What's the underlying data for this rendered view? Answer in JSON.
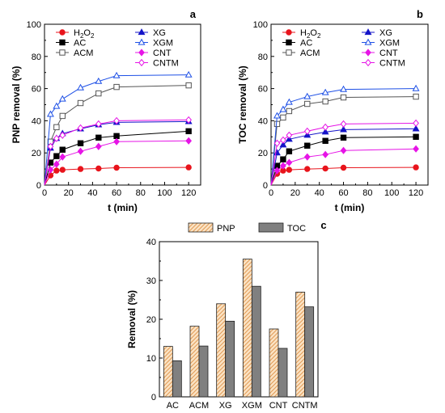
{
  "chart_data": [
    {
      "panel": "a",
      "type": "line",
      "xlabel": "t (min)",
      "ylabel": "PNP removal (%)",
      "xlim": [
        0,
        130
      ],
      "ylim": [
        0,
        100
      ],
      "xticks": [
        0,
        20,
        40,
        60,
        80,
        100,
        120
      ],
      "yticks": [
        0,
        20,
        40,
        60,
        80,
        100
      ],
      "legend_position": "top",
      "series": [
        {
          "name": "H2O2",
          "label_main": "H",
          "label_sub1": "2",
          "label_mid": "O",
          "label_sub2": "2",
          "color": "#e8141c",
          "marker": "circle-filled",
          "x": [
            0,
            5,
            10,
            15,
            30,
            45,
            60,
            120
          ],
          "y": [
            0,
            6,
            9,
            9.5,
            10,
            10.3,
            10.8,
            11
          ]
        },
        {
          "name": "AC",
          "color": "#000000",
          "marker": "square-filled",
          "x": [
            0,
            5,
            10,
            15,
            30,
            45,
            60,
            120
          ],
          "y": [
            0,
            14,
            18,
            22,
            26,
            29.5,
            30.5,
            33.5
          ]
        },
        {
          "name": "ACM",
          "color": "#555555",
          "marker": "square-open",
          "x": [
            0,
            5,
            10,
            15,
            30,
            45,
            60,
            120
          ],
          "y": [
            0,
            27,
            36,
            43,
            51,
            57,
            61,
            62
          ]
        },
        {
          "name": "XG",
          "color": "#1414c8",
          "marker": "triangle-filled",
          "x": [
            0,
            5,
            10,
            15,
            30,
            45,
            60,
            120
          ],
          "y": [
            0,
            23,
            29,
            32,
            35,
            37.5,
            39,
            39.5
          ]
        },
        {
          "name": "XGM",
          "color": "#1e50e6",
          "marker": "triangle-open",
          "x": [
            0,
            5,
            10,
            15,
            30,
            45,
            60,
            120
          ],
          "y": [
            0,
            44,
            49,
            53.5,
            60.5,
            64.5,
            68,
            68.5
          ]
        },
        {
          "name": "CNT",
          "color": "#e614e6",
          "marker": "diamond-filled",
          "x": [
            0,
            5,
            10,
            15,
            30,
            45,
            60,
            120
          ],
          "y": [
            0,
            9.5,
            13,
            17.5,
            21,
            24,
            27,
            27.5
          ]
        },
        {
          "name": "CNTM",
          "color": "#e614e6",
          "marker": "diamond-open",
          "x": [
            0,
            5,
            10,
            15,
            30,
            45,
            60,
            120
          ],
          "y": [
            0,
            24,
            29,
            31,
            35.5,
            38,
            40,
            40.5
          ]
        }
      ]
    },
    {
      "panel": "b",
      "type": "line",
      "xlabel": "t (min)",
      "ylabel": "TOC removal (%)",
      "xlim": [
        0,
        130
      ],
      "ylim": [
        0,
        100
      ],
      "xticks": [
        0,
        20,
        40,
        60,
        80,
        100,
        120
      ],
      "yticks": [
        0,
        20,
        40,
        60,
        80,
        100
      ],
      "legend_position": "top",
      "series": [
        {
          "name": "H2O2",
          "label_main": "H",
          "label_sub1": "2",
          "label_mid": "O",
          "label_sub2": "2",
          "color": "#e8141c",
          "marker": "circle-filled",
          "x": [
            0,
            5,
            10,
            15,
            30,
            45,
            60,
            120
          ],
          "y": [
            0,
            7,
            9,
            9.5,
            10,
            10.3,
            10.8,
            11
          ]
        },
        {
          "name": "AC",
          "color": "#000000",
          "marker": "square-filled",
          "x": [
            0,
            5,
            10,
            15,
            30,
            45,
            60,
            120
          ],
          "y": [
            0,
            12,
            16,
            21,
            24.5,
            27.5,
            29.5,
            30
          ]
        },
        {
          "name": "ACM",
          "color": "#555555",
          "marker": "square-open",
          "x": [
            0,
            5,
            10,
            15,
            30,
            45,
            60,
            120
          ],
          "y": [
            0,
            38,
            42,
            46,
            50.5,
            52,
            54.5,
            55
          ]
        },
        {
          "name": "XG",
          "color": "#1414c8",
          "marker": "triangle-filled",
          "x": [
            0,
            5,
            10,
            15,
            30,
            45,
            60,
            120
          ],
          "y": [
            0,
            20,
            25,
            28.5,
            31,
            33,
            34.5,
            35
          ]
        },
        {
          "name": "XGM",
          "color": "#1e50e6",
          "marker": "triangle-open",
          "x": [
            0,
            5,
            10,
            15,
            30,
            45,
            60,
            120
          ],
          "y": [
            0,
            43,
            47,
            51.5,
            55,
            57.5,
            59.5,
            60
          ]
        },
        {
          "name": "CNT",
          "color": "#e614e6",
          "marker": "diamond-filled",
          "x": [
            0,
            5,
            10,
            15,
            30,
            45,
            60,
            120
          ],
          "y": [
            0,
            9,
            12,
            14,
            17.5,
            19,
            21.5,
            22.5
          ]
        },
        {
          "name": "CNTM",
          "color": "#e614e6",
          "marker": "diamond-open",
          "x": [
            0,
            5,
            10,
            15,
            30,
            45,
            60,
            120
          ],
          "y": [
            0,
            26,
            28,
            31,
            33.5,
            36,
            38,
            38.5
          ]
        }
      ]
    },
    {
      "panel": "c",
      "type": "bar",
      "ylabel": "Removal (%)",
      "ylim": [
        0,
        40
      ],
      "yticks": [
        0,
        10,
        20,
        30,
        40
      ],
      "categories": [
        "AC",
        "ACM",
        "XG",
        "XGM",
        "CNT",
        "CNTM"
      ],
      "legend_position": "top",
      "series": [
        {
          "name": "PNP",
          "fill": "#fbe3c4",
          "hatch": "#e09a55",
          "values": [
            13,
            18.2,
            24,
            35.5,
            17.5,
            27
          ]
        },
        {
          "name": "TOC",
          "fill": "#808080",
          "hatch": "",
          "values": [
            9.3,
            13.1,
            19.5,
            28.5,
            12.5,
            23.2
          ]
        }
      ]
    }
  ]
}
